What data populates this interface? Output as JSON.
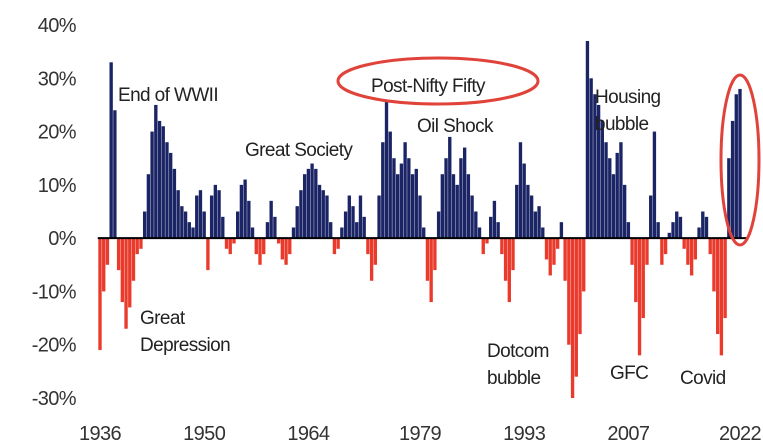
{
  "chart_data": {
    "type": "bar",
    "x": [
      1936,
      1936.5,
      1937,
      1937.5,
      1938,
      1938.5,
      1939,
      1939.5,
      1940,
      1940.5,
      1941,
      1941.5,
      1942,
      1942.5,
      1943,
      1943.5,
      1944,
      1944.5,
      1945,
      1945.5,
      1946,
      1946.5,
      1947,
      1947.5,
      1948,
      1948.5,
      1949,
      1949.5,
      1950,
      1950.5,
      1951,
      1951.5,
      1952,
      1952.5,
      1953,
      1953.5,
      1954,
      1954.5,
      1955,
      1955.5,
      1956,
      1956.5,
      1957,
      1957.5,
      1958,
      1958.5,
      1959,
      1959.5,
      1960,
      1960.5,
      1961,
      1961.5,
      1962,
      1962.5,
      1963,
      1963.5,
      1964,
      1964.5,
      1965,
      1965.5,
      1966,
      1966.5,
      1967,
      1967.5,
      1968,
      1968.5,
      1969,
      1969.5,
      1970,
      1970.5,
      1971,
      1971.5,
      1972,
      1972.5,
      1973,
      1973.5,
      1974,
      1974.5,
      1975,
      1975.5,
      1976,
      1976.5,
      1977,
      1977.5,
      1978,
      1978.5,
      1979,
      1979.5,
      1980,
      1980.5,
      1981,
      1981.5,
      1982,
      1982.5,
      1983,
      1983.5,
      1984,
      1984.5,
      1985,
      1985.5,
      1986,
      1986.5,
      1987,
      1987.5,
      1988,
      1988.5,
      1989,
      1989.5,
      1990,
      1990.5,
      1991,
      1991.5,
      1992,
      1992.5,
      1993,
      1993.5,
      1994,
      1994.5,
      1995,
      1995.5,
      1996,
      1996.5,
      1997,
      1997.5,
      1998,
      1998.5,
      1999,
      1999.5,
      2000,
      2000.5,
      2001,
      2001.5,
      2002,
      2002.5,
      2003,
      2003.5,
      2004,
      2004.5,
      2005,
      2005.5,
      2006,
      2006.5,
      2007,
      2007.5,
      2008,
      2008.5,
      2009,
      2009.5,
      2010,
      2010.5,
      2011,
      2011.5,
      2012,
      2012.5,
      2013,
      2013.5,
      2014,
      2014.5,
      2015,
      2015.5,
      2016,
      2016.5,
      2017,
      2017.5,
      2018,
      2018.5,
      2019,
      2019.5,
      2020,
      2020.5,
      2021,
      2021.5,
      2022
    ],
    "values": [
      -21,
      -10,
      -5,
      33,
      24,
      -6,
      -12,
      -17,
      -13,
      -8,
      -3,
      -2,
      5,
      12,
      20,
      25,
      22,
      21,
      18,
      16,
      13,
      9,
      6,
      5,
      3,
      2,
      8,
      9,
      5,
      -6,
      8,
      10,
      9,
      4,
      -2,
      -3,
      -1,
      5,
      10,
      11,
      7,
      2,
      -3,
      -5,
      -3,
      3,
      7,
      4,
      -1,
      -4,
      -5,
      -3,
      2,
      6,
      9,
      12,
      13,
      14,
      13,
      10,
      9,
      8,
      3,
      -3,
      -2,
      2,
      5,
      8,
      6,
      3,
      8,
      4,
      -3,
      -8,
      -5,
      8,
      18,
      26,
      20,
      15,
      12,
      14,
      18,
      15,
      12,
      13,
      8,
      2,
      -8,
      -12,
      -6,
      5,
      12,
      15,
      19,
      12,
      10,
      15,
      17,
      12,
      8,
      5,
      2,
      -3,
      -1,
      4,
      7,
      3,
      -3,
      -8,
      -12,
      -6,
      10,
      18,
      14,
      10,
      8,
      5,
      6,
      2,
      -4,
      -7,
      -5,
      -2,
      3,
      -8,
      -20,
      -30,
      -26,
      -18,
      -10,
      37,
      30,
      27,
      25,
      22,
      18,
      15,
      12,
      16,
      18,
      10,
      3,
      -5,
      -12,
      -22,
      -15,
      -5,
      8,
      20,
      3,
      -5,
      -3,
      1,
      3,
      5,
      4,
      -2,
      -5,
      -7,
      -4,
      2,
      5,
      4,
      -3,
      -10,
      -18,
      -22,
      -15,
      15,
      22,
      27,
      28
    ],
    "positive_color": "#1b2566",
    "negative_color": "#ea3a2c",
    "xlim": [
      1935.7,
      2022.3
    ],
    "xticks": [
      1936,
      1950,
      1964,
      1979,
      1993,
      2007,
      2022
    ],
    "ylim": [
      -30,
      40
    ],
    "yticks": [
      {
        "value": 40,
        "label": "40%"
      },
      {
        "value": 30,
        "label": "30%"
      },
      {
        "value": 20,
        "label": "20%"
      },
      {
        "value": 10,
        "label": "10%"
      },
      {
        "value": 0,
        "label": "0%"
      },
      {
        "value": -10,
        "label": "-10%"
      },
      {
        "value": -20,
        "label": "-20%"
      },
      {
        "value": -30,
        "label": "-30%"
      }
    ],
    "annotations": [
      [
        "End of WWII"
      ],
      [
        "Great",
        "Depression"
      ],
      [
        "Great Society"
      ],
      [
        "Post-Nifty Fifty"
      ],
      [
        "Oil Shock"
      ],
      [
        "Housing",
        "bubble"
      ],
      [
        "Dotcom",
        "bubble"
      ],
      [
        "GFC"
      ],
      [
        "Covid"
      ]
    ]
  }
}
